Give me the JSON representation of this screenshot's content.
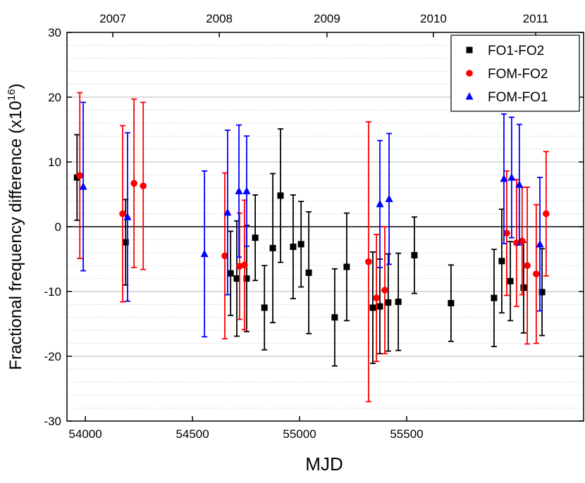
{
  "chart_data": {
    "type": "errorbar-scatter",
    "xlabel": "MJD",
    "ylabel": "Fractional frequency difference (x10",
    "ylabel_sup": "16",
    "ylabel_end": ")",
    "xlim": [
      53914,
      56326
    ],
    "ylim": [
      -30,
      30
    ],
    "xticks": [
      54000,
      54500,
      55000,
      55500
    ],
    "yticks": [
      -30,
      -20,
      -10,
      0,
      10,
      20,
      30
    ],
    "x2ticks": [
      {
        "value": 54128,
        "label": "2007"
      },
      {
        "value": 54625,
        "label": "2008"
      },
      {
        "value": 55128,
        "label": "2009"
      },
      {
        "value": 55625,
        "label": "2010"
      },
      {
        "value": 56102,
        "label": "2011"
      }
    ],
    "grid": true,
    "legend": "upper right",
    "series": [
      {
        "name": "FO1-FO2",
        "color": "#000000",
        "marker": "square",
        "x": [
          53961,
          54188,
          54678,
          54707,
          54753,
          54793,
          54836,
          54875,
          54911,
          54970,
          55007,
          55043,
          55164,
          55220,
          55342,
          55375,
          55414,
          55461,
          55536,
          55707,
          55908,
          55944,
          55984,
          56046,
          56132
        ],
        "values": [
          7.6,
          -2.4,
          -7.2,
          -8.0,
          -8.0,
          -1.7,
          -12.5,
          -3.3,
          4.8,
          -3.1,
          -2.7,
          -7.1,
          -14.0,
          -6.2,
          -12.5,
          -12.3,
          -11.7,
          -11.6,
          -4.4,
          -11.8,
          -11.0,
          -5.3,
          -8.4,
          -9.4,
          -10.1
        ],
        "errors": [
          6.6,
          6.6,
          6.5,
          8.9,
          8.2,
          6.6,
          6.5,
          11.5,
          10.3,
          8.0,
          6.6,
          9.4,
          7.5,
          8.3,
          8.6,
          7.3,
          7.5,
          7.5,
          5.9,
          5.9,
          7.5,
          8.0,
          6.1,
          7.0,
          6.7
        ]
      },
      {
        "name": "FOM-FO2",
        "color": "#ff0000",
        "marker": "circle",
        "x": [
          53974,
          54174,
          54227,
          54270,
          54651,
          54720,
          54743,
          55322,
          55359,
          55398,
          55967,
          56013,
          56039,
          56063,
          56105,
          56151
        ],
        "values": [
          7.9,
          2.0,
          6.7,
          6.3,
          -4.5,
          -6.1,
          -5.9,
          -5.4,
          -11.0,
          -9.8,
          -1.0,
          -2.5,
          -2.2,
          -6.0,
          -7.3,
          2.0
        ],
        "errors": [
          12.8,
          13.6,
          13.0,
          12.9,
          12.8,
          8.2,
          10.0,
          21.6,
          9.8,
          9.8,
          9.6,
          9.8,
          8.3,
          12.1,
          10.7,
          9.6
        ]
      },
      {
        "name": "FOM-FO1",
        "color": "#0000ff",
        "marker": "triangle",
        "x": [
          53990,
          54197,
          54556,
          54664,
          54717,
          54753,
          55375,
          55418,
          55954,
          55990,
          56026,
          56122
        ],
        "values": [
          6.2,
          1.5,
          -4.2,
          2.2,
          5.5,
          5.5,
          3.5,
          4.3,
          7.4,
          7.6,
          6.5,
          -2.7
        ],
        "errors": [
          13.0,
          13.0,
          12.8,
          12.7,
          10.2,
          8.5,
          9.8,
          10.1,
          10.0,
          9.3,
          9.3,
          10.3
        ]
      }
    ]
  }
}
